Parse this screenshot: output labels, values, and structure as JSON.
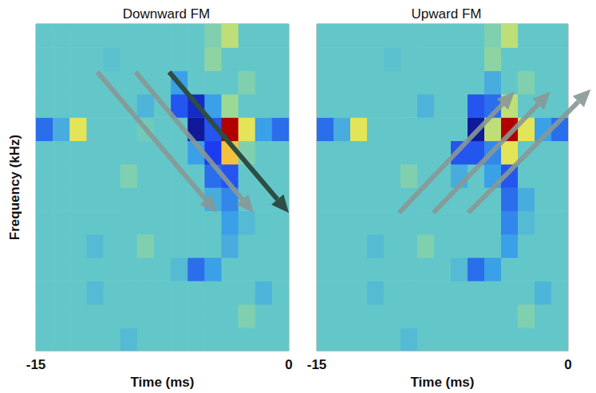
{
  "chart_data": [
    {
      "type": "heatmap",
      "title": "Downward FM",
      "xlabel": "Time (ms)",
      "ylabel": "Frequency (kHz)",
      "xlim": [
        -15,
        0
      ],
      "xticks": [
        -15,
        0
      ],
      "ylim": [
        -0.5,
        13.5
      ],
      "yticks": [],
      "tick_labels": "x",
      "clim": [
        -1,
        1
      ],
      "x": [
        -14.5,
        -13.5,
        -12.5,
        -11.5,
        -10.5,
        -9.5,
        -8.5,
        -7.5,
        -6.5,
        -5.5,
        -4.5,
        -3.5,
        -2.5,
        -1.5,
        -0.5
      ],
      "y": [
        0,
        1,
        2,
        3,
        4,
        5,
        6,
        7,
        8,
        9,
        10,
        11,
        12,
        13
      ],
      "values": [
        [
          0,
          0,
          0,
          0,
          0,
          -0.1,
          0,
          0,
          0,
          0,
          0,
          0,
          0,
          0,
          0
        ],
        [
          0,
          0,
          0,
          0,
          0,
          0,
          0,
          0,
          0,
          0,
          0,
          0,
          0.1,
          0,
          0
        ],
        [
          0,
          0,
          0,
          -0.1,
          0,
          0,
          0,
          0,
          0,
          0,
          0,
          0,
          0,
          -0.15,
          0
        ],
        [
          0,
          0,
          0,
          0,
          0,
          0,
          0,
          0,
          -0.1,
          -0.5,
          -0.3,
          0,
          0,
          0,
          0
        ],
        [
          0,
          0,
          0,
          -0.1,
          0,
          0,
          0.1,
          0,
          0,
          0,
          0,
          -0.2,
          0,
          0,
          0
        ],
        [
          0,
          0,
          0,
          0,
          0,
          0,
          0,
          0,
          0,
          0,
          0,
          -0.3,
          -0.1,
          0,
          0
        ],
        [
          0,
          0,
          0,
          0,
          0,
          0,
          0,
          0,
          0,
          0,
          -0.2,
          -0.4,
          0,
          0,
          0
        ],
        [
          0,
          0,
          0,
          0,
          0,
          0.1,
          0,
          0,
          0,
          0,
          -0.5,
          -0.6,
          0,
          0,
          0
        ],
        [
          0,
          0,
          0,
          0,
          0,
          0,
          0,
          0,
          0,
          -0.3,
          -0.7,
          0.5,
          0.1,
          0,
          0
        ],
        [
          -0.5,
          -0.2,
          0.4,
          0,
          0,
          0,
          0.05,
          0,
          0,
          -0.9,
          -0.6,
          1,
          0.4,
          -0.3,
          -0.5
        ],
        [
          0,
          0,
          0,
          0,
          0,
          0,
          -0.15,
          0,
          -0.6,
          -0.8,
          -0.3,
          0.2,
          0,
          0,
          0
        ],
        [
          0,
          0,
          0,
          0,
          0,
          0,
          0,
          0,
          -0.3,
          0,
          0,
          0,
          0.1,
          0,
          0
        ],
        [
          0,
          0,
          0,
          0,
          -0.05,
          0,
          0,
          0,
          0,
          0,
          0.15,
          0,
          0,
          0,
          0
        ],
        [
          0,
          0,
          0,
          0,
          0,
          0,
          0,
          0,
          0,
          0,
          0.1,
          0.3,
          0,
          0,
          0
        ]
      ]
    },
    {
      "type": "heatmap",
      "title": "Upward FM",
      "xlabel": "Time (ms)",
      "xlim": [
        -15,
        0
      ],
      "xticks": [
        -15,
        0
      ],
      "ylim": [
        -0.5,
        13.5
      ],
      "yticks": [],
      "tick_labels": "x",
      "clim": [
        -1,
        1
      ],
      "x": [
        -14.5,
        -13.5,
        -12.5,
        -11.5,
        -10.5,
        -9.5,
        -8.5,
        -7.5,
        -6.5,
        -5.5,
        -4.5,
        -3.5,
        -2.5,
        -1.5,
        -0.5
      ],
      "y": [
        0,
        1,
        2,
        3,
        4,
        5,
        6,
        7,
        8,
        9,
        10,
        11,
        12,
        13
      ],
      "values": [
        [
          0,
          0,
          0,
          0,
          0,
          -0.1,
          0,
          0,
          0,
          0,
          0,
          0,
          0,
          0,
          0
        ],
        [
          0,
          0,
          0,
          0,
          0,
          0,
          0,
          0,
          0,
          0,
          0,
          0,
          0.1,
          0,
          0
        ],
        [
          0,
          0,
          0,
          -0.1,
          0,
          0,
          0,
          0,
          0,
          0,
          0,
          0,
          0,
          -0.15,
          0
        ],
        [
          0,
          0,
          0,
          0,
          0,
          0,
          0,
          0,
          -0.1,
          -0.5,
          -0.3,
          0,
          0,
          0,
          0
        ],
        [
          0,
          0,
          0,
          -0.1,
          0,
          0,
          0.1,
          0,
          0,
          0,
          0,
          -0.3,
          0,
          0,
          0
        ],
        [
          0,
          0,
          0,
          0,
          0,
          0,
          0,
          0,
          0,
          0,
          0,
          -0.4,
          -0.1,
          0,
          0
        ],
        [
          0,
          0,
          0,
          0,
          0,
          0,
          0,
          0,
          0,
          0,
          0,
          -0.5,
          -0.2,
          0,
          0
        ],
        [
          0,
          0,
          0,
          0,
          0,
          0.1,
          0,
          0,
          -0.2,
          0,
          -0.3,
          -0.6,
          0,
          0,
          0
        ],
        [
          0,
          0,
          0,
          0,
          0,
          0,
          0,
          0,
          -0.6,
          -0.6,
          -0.4,
          0.4,
          0,
          0,
          0
        ],
        [
          -0.5,
          -0.2,
          0.4,
          0,
          0,
          0,
          0,
          0,
          0,
          -0.9,
          0.3,
          1,
          0.4,
          -0.3,
          -0.5
        ],
        [
          0,
          0,
          0,
          0,
          0,
          0,
          -0.15,
          0,
          0,
          -0.6,
          -0.5,
          0.3,
          0,
          0,
          0
        ],
        [
          0,
          0,
          0,
          0,
          0,
          0,
          0,
          0,
          0,
          0,
          -0.2,
          0,
          0.1,
          0,
          0
        ],
        [
          0,
          0,
          0,
          0,
          -0.05,
          0,
          0,
          0,
          0,
          0,
          0.15,
          0,
          0,
          0,
          0
        ],
        [
          0,
          0,
          0,
          0,
          0,
          0,
          0,
          0,
          0,
          0,
          0.1,
          0.3,
          0,
          0,
          0
        ]
      ]
    }
  ]
}
